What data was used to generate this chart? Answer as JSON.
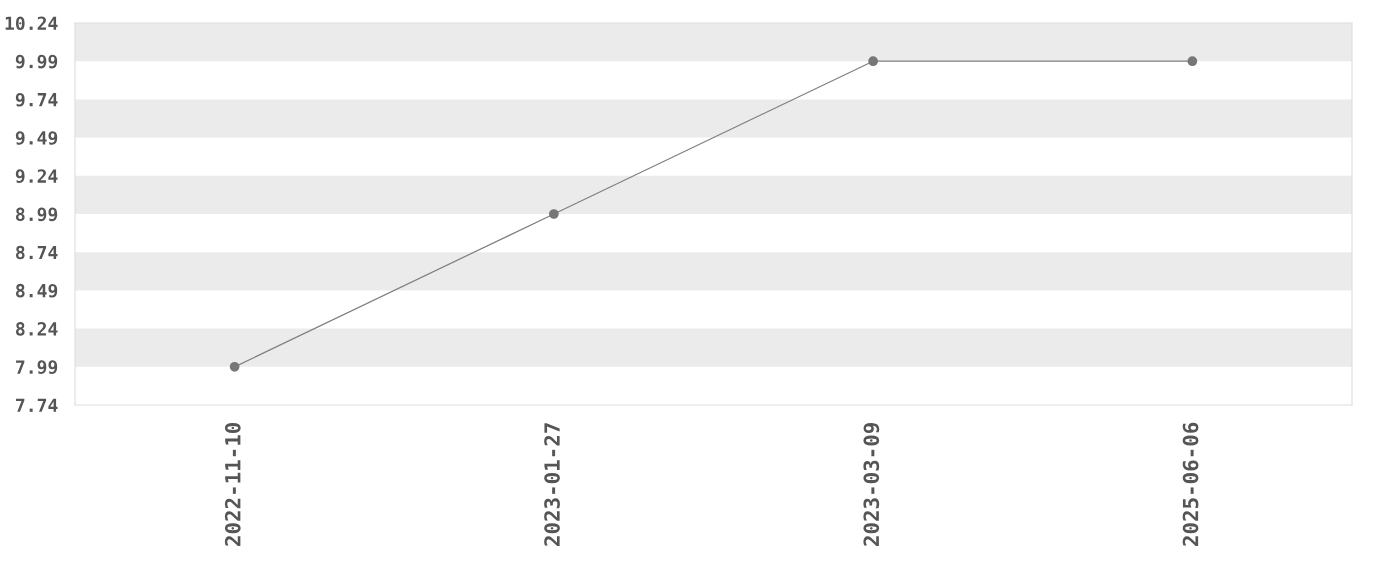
{
  "chart_data": {
    "type": "line",
    "categories": [
      "2022-11-10",
      "2023-01-27",
      "2023-03-09",
      "2025-06-06"
    ],
    "series": [
      {
        "color": "#808080",
        "values": [
          7.99,
          8.99,
          9.99,
          9.99
        ]
      }
    ],
    "ylim": [
      7.74,
      10.24
    ],
    "yticks": [
      7.74,
      7.99,
      8.24,
      8.49,
      8.74,
      8.99,
      9.24,
      9.49,
      9.74,
      9.99,
      10.24
    ],
    "bands": [
      {
        "axis": "y",
        "from": 7.99,
        "to": 8.24,
        "color": "#ebebeb"
      },
      {
        "axis": "y",
        "from": 8.49,
        "to": 8.74,
        "color": "#ebebeb"
      },
      {
        "axis": "y",
        "from": 8.99,
        "to": 9.24,
        "color": "#ebebeb"
      },
      {
        "axis": "y",
        "from": 9.49,
        "to": 9.74,
        "color": "#ebebeb"
      },
      {
        "axis": "y",
        "from": 9.99,
        "to": 10.24,
        "color": "#ebebeb"
      }
    ],
    "marker": "circle",
    "line_style": "solid",
    "grid": false
  }
}
